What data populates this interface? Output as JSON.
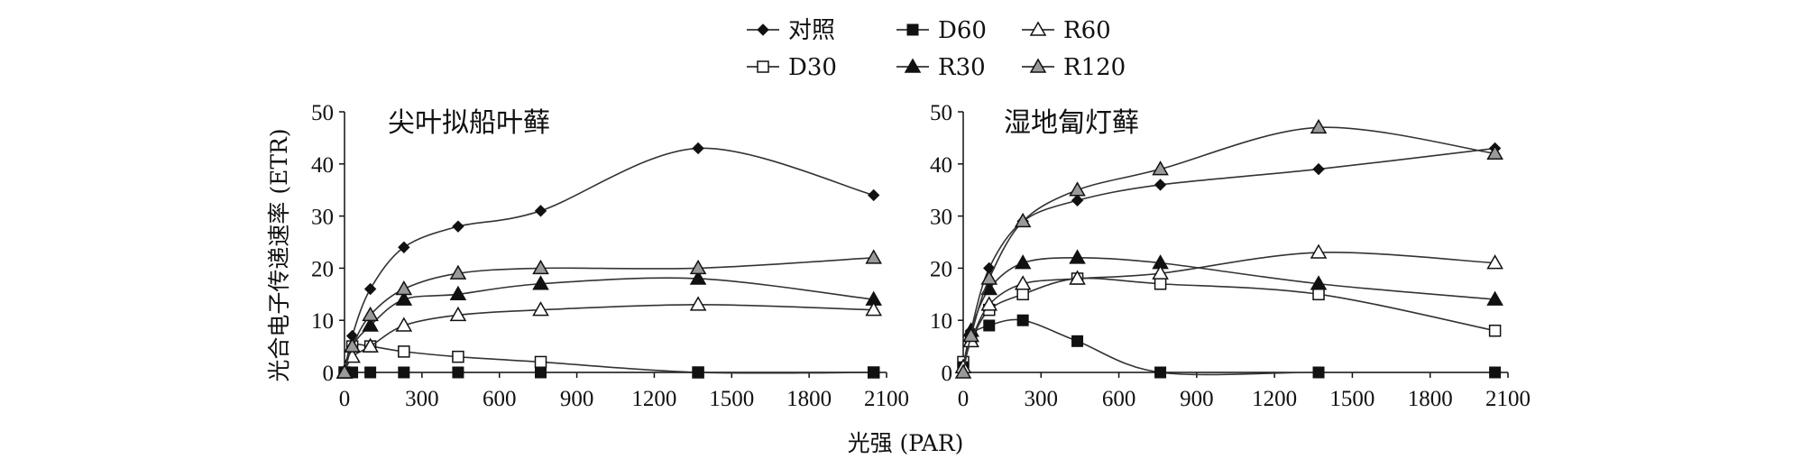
{
  "chart_data": [
    {
      "type": "line",
      "title": "尖叶拟船叶藓",
      "ylabel": "光合电子传递速率 (ETR)",
      "xlabel": "光强 (PAR)",
      "xlim": [
        0,
        2100
      ],
      "ylim": [
        0,
        50
      ],
      "xticks": [
        "0",
        "300",
        "600",
        "900",
        "1200",
        "1500",
        "1800",
        "2100"
      ],
      "yticks": [
        "0",
        "10",
        "20",
        "30",
        "40",
        "50"
      ],
      "x": [
        0,
        30,
        100,
        230,
        440,
        760,
        1370,
        2050
      ],
      "series": [
        {
          "name": "对照",
          "marker": "diamond",
          "values": [
            0,
            7,
            16,
            24,
            28,
            31,
            43,
            34
          ]
        },
        {
          "name": "D30",
          "marker": "square-open",
          "values": [
            0,
            5,
            5,
            4,
            3,
            2,
            0,
            0
          ]
        },
        {
          "name": "D60",
          "marker": "square-filled",
          "values": [
            0,
            0,
            0,
            0,
            0,
            0,
            0,
            0
          ]
        },
        {
          "name": "R30",
          "marker": "triangle-filled",
          "values": [
            0,
            5,
            9,
            14,
            15,
            17,
            18,
            14
          ]
        },
        {
          "name": "R60",
          "marker": "triangle-open",
          "values": [
            0,
            3,
            5,
            9,
            11,
            12,
            13,
            12
          ]
        },
        {
          "name": "R120",
          "marker": "triangle-gray",
          "values": [
            0,
            5,
            11,
            16,
            19,
            20,
            20,
            22
          ]
        }
      ]
    },
    {
      "type": "line",
      "title": "湿地匐灯藓",
      "xlim": [
        0,
        2100
      ],
      "ylim": [
        0,
        50
      ],
      "xticks": [
        "0",
        "300",
        "600",
        "900",
        "1200",
        "1500",
        "1800",
        "2100"
      ],
      "yticks": [
        "0",
        "10",
        "20",
        "30",
        "40",
        "50"
      ],
      "x": [
        0,
        30,
        100,
        230,
        440,
        760,
        1370,
        2050
      ],
      "series": [
        {
          "name": "对照",
          "marker": "diamond",
          "values": [
            0,
            8,
            20,
            29,
            33,
            36,
            39,
            43
          ]
        },
        {
          "name": "D30",
          "marker": "square-open",
          "values": [
            2,
            6,
            12,
            15,
            18,
            17,
            15,
            8
          ]
        },
        {
          "name": "D60",
          "marker": "square-filled",
          "values": [
            1,
            7,
            9,
            10,
            6,
            0,
            0,
            0
          ]
        },
        {
          "name": "R30",
          "marker": "triangle-filled",
          "values": [
            1,
            8,
            16,
            21,
            22,
            21,
            17,
            14
          ]
        },
        {
          "name": "R60",
          "marker": "triangle-open",
          "values": [
            1,
            6,
            13,
            17,
            18,
            19,
            23,
            21
          ]
        },
        {
          "name": "R120",
          "marker": "triangle-gray",
          "values": [
            0,
            7,
            18,
            29,
            35,
            39,
            47,
            42
          ]
        }
      ]
    }
  ],
  "shared_xlabel": "光强 (PAR)",
  "legend": {
    "placement": "top-center",
    "rows": [
      [
        "对照",
        "D60",
        "R60"
      ],
      [
        "D30",
        "R30",
        "R120"
      ]
    ]
  },
  "colors": {
    "line": "#333333",
    "marker_fill_dark": "#111111",
    "marker_fill_gray": "#9a9a9a",
    "marker_fill_open": "#ffffff"
  }
}
